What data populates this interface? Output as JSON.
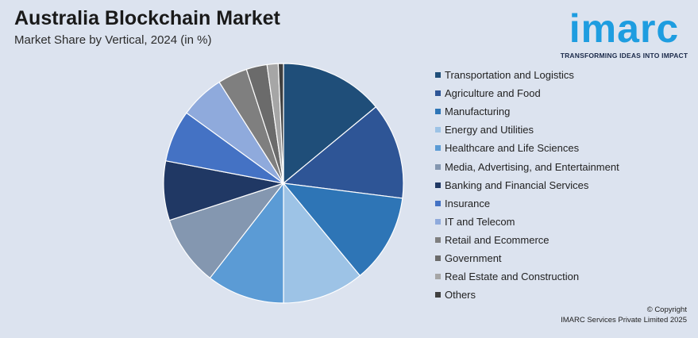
{
  "title": "Australia Blockchain Market",
  "subtitle": "Market Share by Vertical, 2024 (in %)",
  "logo": {
    "word": "imarc",
    "tagline": "TRANSFORMING IDEAS INTO IMPACT"
  },
  "copyright": {
    "line1": "© Copyright",
    "line2": "IMARC Services Private Limited 2025"
  },
  "chart_data": {
    "type": "pie",
    "title": "Australia Blockchain Market",
    "subtitle": "Market Share by Vertical, 2024 (in %)",
    "legend_position": "right",
    "categories": [
      "Transportation and Logistics",
      "Agriculture and Food",
      "Manufacturing",
      "Energy and Utilities",
      "Healthcare and Life Sciences",
      "Media, Advertising, and Entertainment",
      "Banking and Financial Services",
      "Insurance",
      "IT and Telecom",
      "Retail and Ecommerce",
      "Government",
      "Real Estate and Construction",
      "Others"
    ],
    "values": [
      14.0,
      13.0,
      12.0,
      11.0,
      10.5,
      9.5,
      8.0,
      7.0,
      6.0,
      4.0,
      2.8,
      1.5,
      0.7
    ],
    "colors": [
      "#1f4e79",
      "#2e5596",
      "#2e75b6",
      "#9dc3e6",
      "#5b9bd5",
      "#8497b0",
      "#203864",
      "#4472c4",
      "#8faadc",
      "#7f7f7f",
      "#6b6b6b",
      "#a6a6a6",
      "#404040"
    ]
  }
}
